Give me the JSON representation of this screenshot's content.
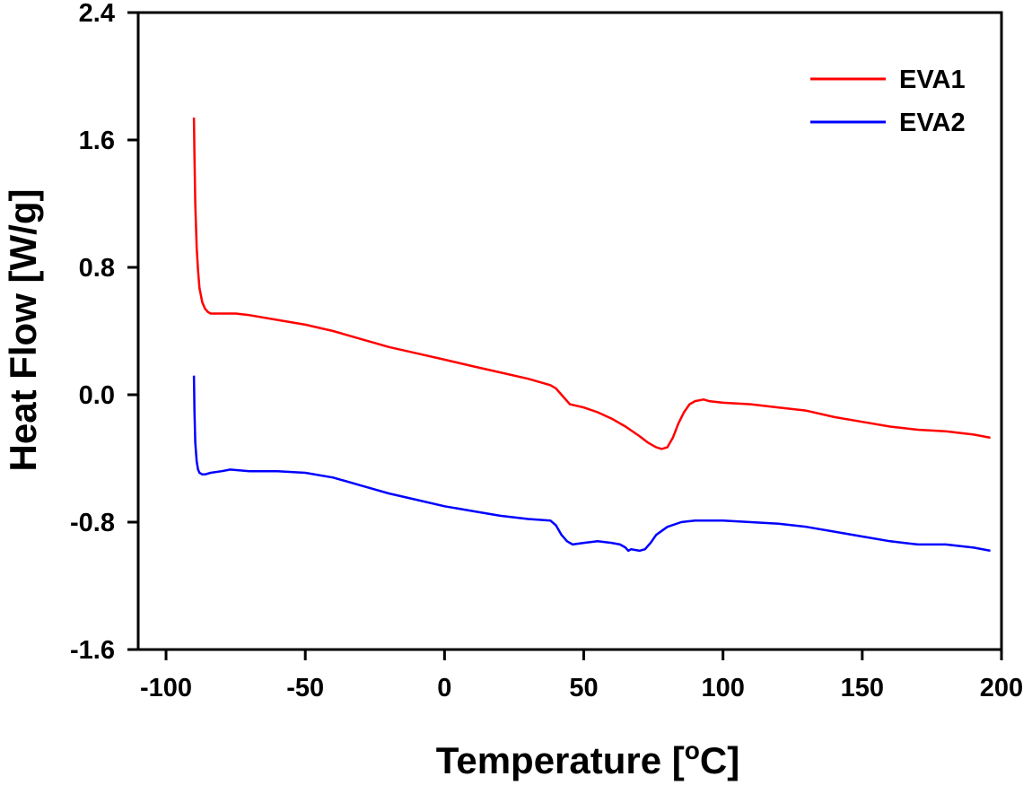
{
  "chart_data": {
    "type": "line",
    "xlabel": "Temperature [",
    "xlabel_sup": "o",
    "xlabel_end": "C]",
    "ylabel": "Heat Flow [W/g]",
    "xlim": [
      -110,
      200
    ],
    "ylim": [
      -1.6,
      2.4
    ],
    "xticks": [
      -100,
      -50,
      0,
      50,
      100,
      150,
      200
    ],
    "yticks": [
      2.4,
      1.6,
      0.8,
      0.0,
      -0.8,
      -1.6
    ],
    "ytick_labels": [
      "2.4",
      "1.6",
      "0.8",
      "0.0",
      "-0.8",
      "-1.6"
    ],
    "grid": false,
    "legend_position": "top-right",
    "series": [
      {
        "name": "EVA1",
        "color": "#ff0000",
        "x": [
          -90,
          -89.8,
          -89.5,
          -89,
          -88.5,
          -88,
          -87,
          -86,
          -85,
          -84,
          -83,
          -80,
          -75,
          -70,
          -60,
          -50,
          -40,
          -30,
          -20,
          -10,
          0,
          10,
          20,
          30,
          38,
          40,
          42,
          45,
          50,
          55,
          60,
          65,
          70,
          73,
          76,
          78,
          80,
          82,
          84,
          86,
          88,
          90,
          93,
          95,
          100,
          110,
          120,
          130,
          140,
          150,
          160,
          165,
          170,
          180,
          190,
          196
        ],
        "y": [
          1.74,
          1.5,
          1.2,
          0.92,
          0.78,
          0.67,
          0.58,
          0.54,
          0.52,
          0.51,
          0.51,
          0.51,
          0.51,
          0.5,
          0.47,
          0.44,
          0.4,
          0.35,
          0.3,
          0.26,
          0.22,
          0.18,
          0.14,
          0.1,
          0.06,
          0.04,
          0.0,
          -0.06,
          -0.08,
          -0.11,
          -0.15,
          -0.2,
          -0.26,
          -0.3,
          -0.33,
          -0.34,
          -0.33,
          -0.27,
          -0.18,
          -0.11,
          -0.06,
          -0.04,
          -0.03,
          -0.04,
          -0.05,
          -0.06,
          -0.08,
          -0.1,
          -0.14,
          -0.17,
          -0.2,
          -0.21,
          -0.22,
          -0.23,
          -0.25,
          -0.27
        ]
      },
      {
        "name": "EVA2",
        "color": "#0000ff",
        "x": [
          -90,
          -89.8,
          -89.5,
          -89,
          -88.5,
          -88,
          -87,
          -86,
          -84,
          -80,
          -77,
          -70,
          -60,
          -50,
          -40,
          -30,
          -20,
          -10,
          0,
          10,
          20,
          30,
          38,
          40,
          42,
          44,
          46,
          50,
          55,
          60,
          63,
          65,
          66,
          67,
          70,
          72,
          74,
          76,
          80,
          85,
          90,
          100,
          110,
          120,
          125,
          130,
          140,
          150,
          160,
          165,
          170,
          180,
          190,
          196
        ],
        "y": [
          0.12,
          -0.1,
          -0.3,
          -0.42,
          -0.47,
          -0.49,
          -0.5,
          -0.5,
          -0.49,
          -0.48,
          -0.47,
          -0.48,
          -0.48,
          -0.49,
          -0.52,
          -0.57,
          -0.62,
          -0.66,
          -0.7,
          -0.73,
          -0.76,
          -0.78,
          -0.79,
          -0.82,
          -0.88,
          -0.92,
          -0.94,
          -0.93,
          -0.92,
          -0.93,
          -0.94,
          -0.96,
          -0.98,
          -0.97,
          -0.98,
          -0.97,
          -0.93,
          -0.88,
          -0.83,
          -0.8,
          -0.79,
          -0.79,
          -0.8,
          -0.81,
          -0.82,
          -0.83,
          -0.86,
          -0.89,
          -0.92,
          -0.93,
          -0.94,
          -0.94,
          -0.96,
          -0.98
        ]
      }
    ]
  }
}
